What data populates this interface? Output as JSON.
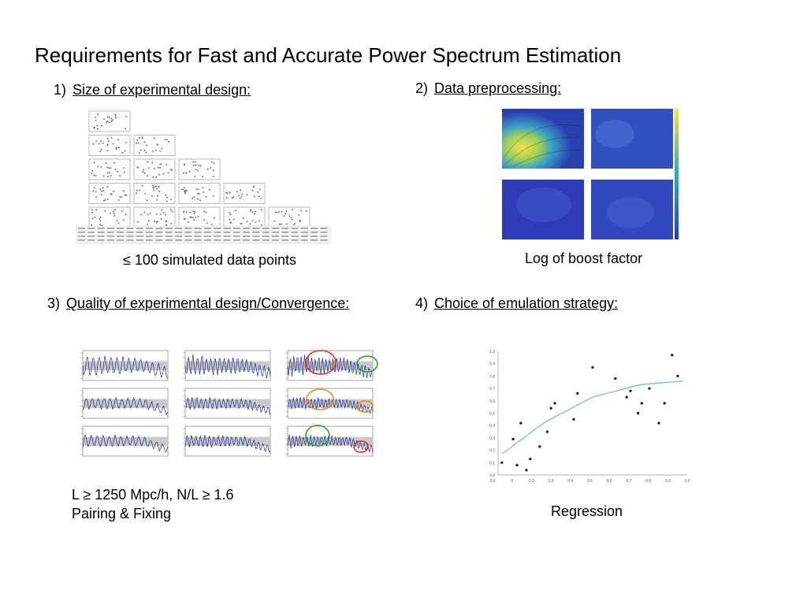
{
  "slide": {
    "title": "Requirements for Fast and Accurate Power Spectrum Estimation",
    "sections": [
      {
        "number": "1)",
        "label": "Size of experimental design:",
        "caption": "≤ 100 simulated data points"
      },
      {
        "number": "2)",
        "label": "Data preprocessing:",
        "caption": "Log of boost factor"
      },
      {
        "number": "3)",
        "label": "Quality of experimental design/Convergence:",
        "caption_lines": [
          "L ≥ 1250 Mpc/h, N/L ≥ 1.6",
          "Pairing & Fixing"
        ]
      },
      {
        "number": "4)",
        "label": "Choice of emulation strategy:",
        "caption": "Regression"
      }
    ]
  },
  "colors": {
    "scatter_red": "#b03030",
    "heatmap_dark": "#2a3fb0",
    "heatmap_yellow": "#f4e04a",
    "spectrum_line": "#1a2a8c",
    "band_gray": "#c8c8c8",
    "circle_red": "#e03020",
    "circle_orange": "#f08a20",
    "circle_green": "#2aa02a",
    "fit_curve": "#6ab4e0"
  },
  "chart_data": [
    {
      "type": "scatter",
      "x": [
        0.02,
        0.08,
        0.1,
        0.12,
        0.15,
        0.17,
        0.22,
        0.26,
        0.28,
        0.3,
        0.4,
        0.42,
        0.5,
        0.62,
        0.68,
        0.7,
        0.74,
        0.76,
        0.8,
        0.85,
        0.88,
        0.92,
        0.95
      ],
      "y": [
        0.1,
        0.29,
        0.08,
        0.42,
        0.04,
        0.13,
        0.23,
        0.35,
        0.54,
        0.58,
        0.45,
        0.66,
        0.87,
        0.78,
        0.63,
        0.68,
        0.5,
        0.58,
        0.7,
        0.42,
        0.58,
        0.97,
        0.8
      ],
      "fit": {
        "x": [
          0.02,
          0.25,
          0.5,
          0.75,
          0.98
        ],
        "y": [
          0.17,
          0.43,
          0.63,
          0.73,
          0.76
        ]
      },
      "xlim": [
        0.0,
        1.0
      ],
      "ylim": [
        0.0,
        1.0
      ],
      "xticks": [
        "0.0",
        "0",
        "0.2",
        "0.3",
        "0.4",
        "0.5",
        "0.6",
        "0.7",
        "0.8",
        "0.9",
        "1.0"
      ],
      "yticks": [
        "1.0",
        "0.9",
        "0.8",
        "0.7",
        "0.6",
        "0.5",
        "0.4",
        "0.3",
        "0.2",
        "0.1",
        "0.0"
      ]
    }
  ]
}
